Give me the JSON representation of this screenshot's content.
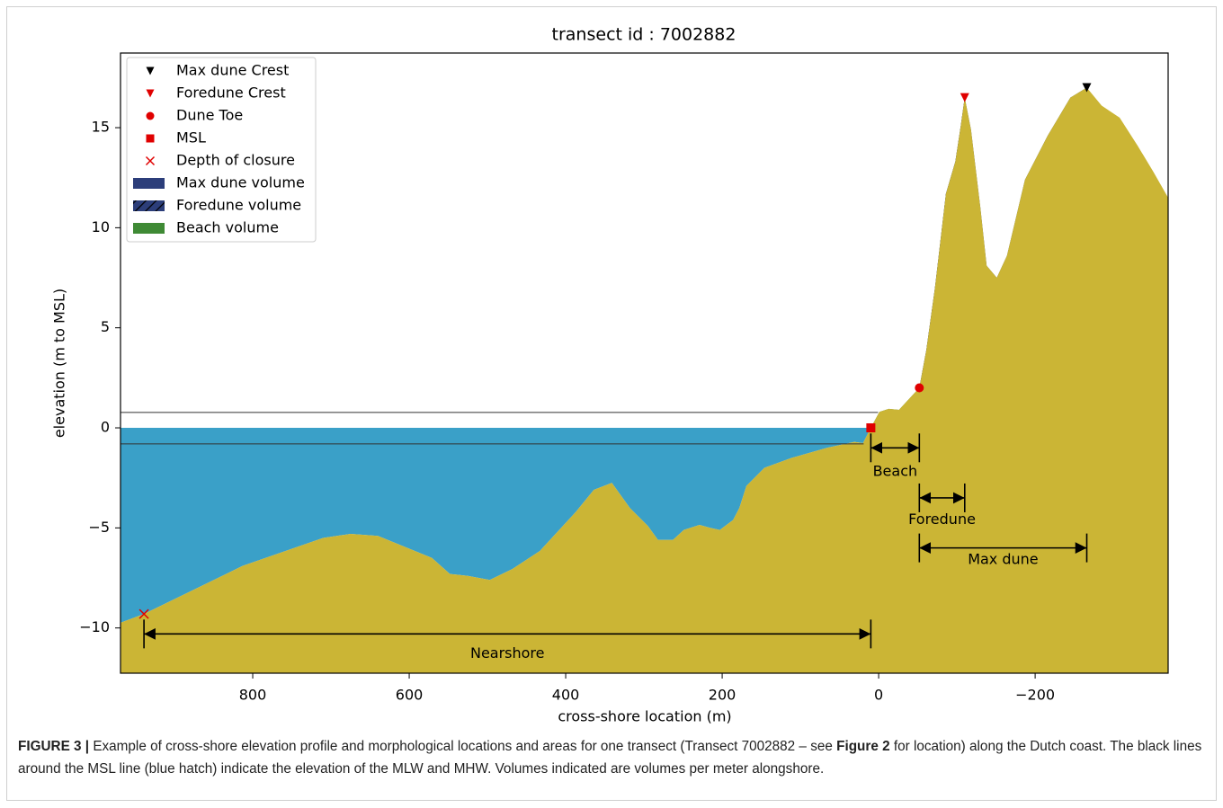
{
  "chart_data": {
    "type": "profile",
    "title": "transect id : 7002882",
    "x_label": "cross-shore location (m)",
    "y_label": "elevation (m to MSL)",
    "xlim": [
      969,
      -370
    ],
    "ylim": [
      -12.26,
      18.73
    ],
    "xticks": [
      800,
      600,
      400,
      200,
      0,
      {
        "value": -200,
        "label": "−200"
      }
    ],
    "yticks": [
      {
        "value": -10,
        "label": "−10"
      },
      {
        "value": -5,
        "label": "−5"
      },
      0,
      5,
      10,
      15
    ],
    "profile": {
      "color": "#cbb535",
      "x": [
        969,
        939,
        813,
        710,
        675,
        640,
        571,
        548,
        525,
        497,
        468,
        433,
        387,
        364,
        341,
        318,
        295,
        282,
        263,
        249,
        229,
        215,
        203,
        186,
        178,
        169,
        146,
        111,
        66,
        31,
        20,
        10,
        -1,
        -13,
        -26,
        -52,
        -61,
        -72,
        -86,
        -98,
        -105,
        -110,
        -118,
        -130,
        -138,
        -151,
        -164,
        -187,
        -216,
        -245,
        -266,
        -285,
        -308,
        -331,
        -351,
        -370
      ],
      "y": [
        -9.74,
        -9.3,
        -6.9,
        -5.5,
        -5.3,
        -5.4,
        -6.5,
        -7.3,
        -7.4,
        -7.6,
        -7.05,
        -6.15,
        -4.2,
        -3.1,
        -2.75,
        -4.0,
        -4.9,
        -5.6,
        -5.6,
        -5.1,
        -4.85,
        -5.0,
        -5.1,
        -4.6,
        -4.0,
        -2.9,
        -2.0,
        -1.5,
        -1.0,
        -0.7,
        -0.76,
        0,
        0.8,
        0.95,
        0.9,
        2.0,
        3.9,
        7.0,
        11.7,
        13.3,
        15.1,
        16.5,
        14.9,
        11.0,
        8.1,
        7.5,
        8.6,
        12.4,
        14.6,
        16.5,
        17.0,
        16.1,
        15.5,
        14.1,
        12.8,
        11.5
      ]
    },
    "water_color": "#3aa0c8",
    "tide_lines": [
      -0.8,
      0.77
    ],
    "markers": [
      {
        "name": "Max dune Crest",
        "shape": "triangle",
        "color": "#000000",
        "x": -266,
        "y": 17.0
      },
      {
        "name": "Foredune Crest",
        "shape": "triangle",
        "color": "#e00000",
        "x": -110,
        "y": 16.5
      },
      {
        "name": "Dune Toe",
        "shape": "circle",
        "color": "#e00000",
        "x": -52,
        "y": 2.0
      },
      {
        "name": "MSL",
        "shape": "square",
        "color": "#e00000",
        "x": 10,
        "y": 0
      },
      {
        "name": "Depth of closure",
        "shape": "cross",
        "color": "#e00000",
        "x": 939,
        "y": -9.3
      }
    ],
    "volumes": [
      {
        "name": "Max dune volume",
        "color": "#2c3e7a",
        "hatch": false,
        "x": [
          -52,
          -266
        ],
        "base": 1.95
      },
      {
        "name": "Foredune volume",
        "color": "#2c3e7a",
        "hatch": true,
        "x": [
          -52,
          -110
        ],
        "base": 1.95
      },
      {
        "name": "Beach volume",
        "color": "#3f8a35",
        "hatch": false,
        "x": [
          10,
          -52
        ],
        "base": 0
      }
    ],
    "annotations": [
      {
        "label": "Beach",
        "x": [
          10,
          -52
        ],
        "y": -1.0,
        "label_y": -2.2
      },
      {
        "label": "Foredune",
        "x": [
          -52,
          -110
        ],
        "y": -3.5,
        "label_y": -4.6
      },
      {
        "label": "Max dune",
        "x": [
          -52,
          -266
        ],
        "y": -6.0,
        "label_y": -6.6
      },
      {
        "label": "Nearshore",
        "x": [
          939,
          10
        ],
        "y": -10.3,
        "label_y": -11.3
      }
    ]
  },
  "caption": {
    "label": "FIGURE 3 |",
    "text_1": " Example of cross-shore elevation profile and morphological locations and areas for one transect (Transect 7002882 – see ",
    "ref": "Figure 2",
    "text_2": " for location) along the Dutch coast. The black lines around the MSL line (blue hatch) indicate the elevation of the MLW and MHW. Volumes indicated are volumes per meter alongshore."
  }
}
